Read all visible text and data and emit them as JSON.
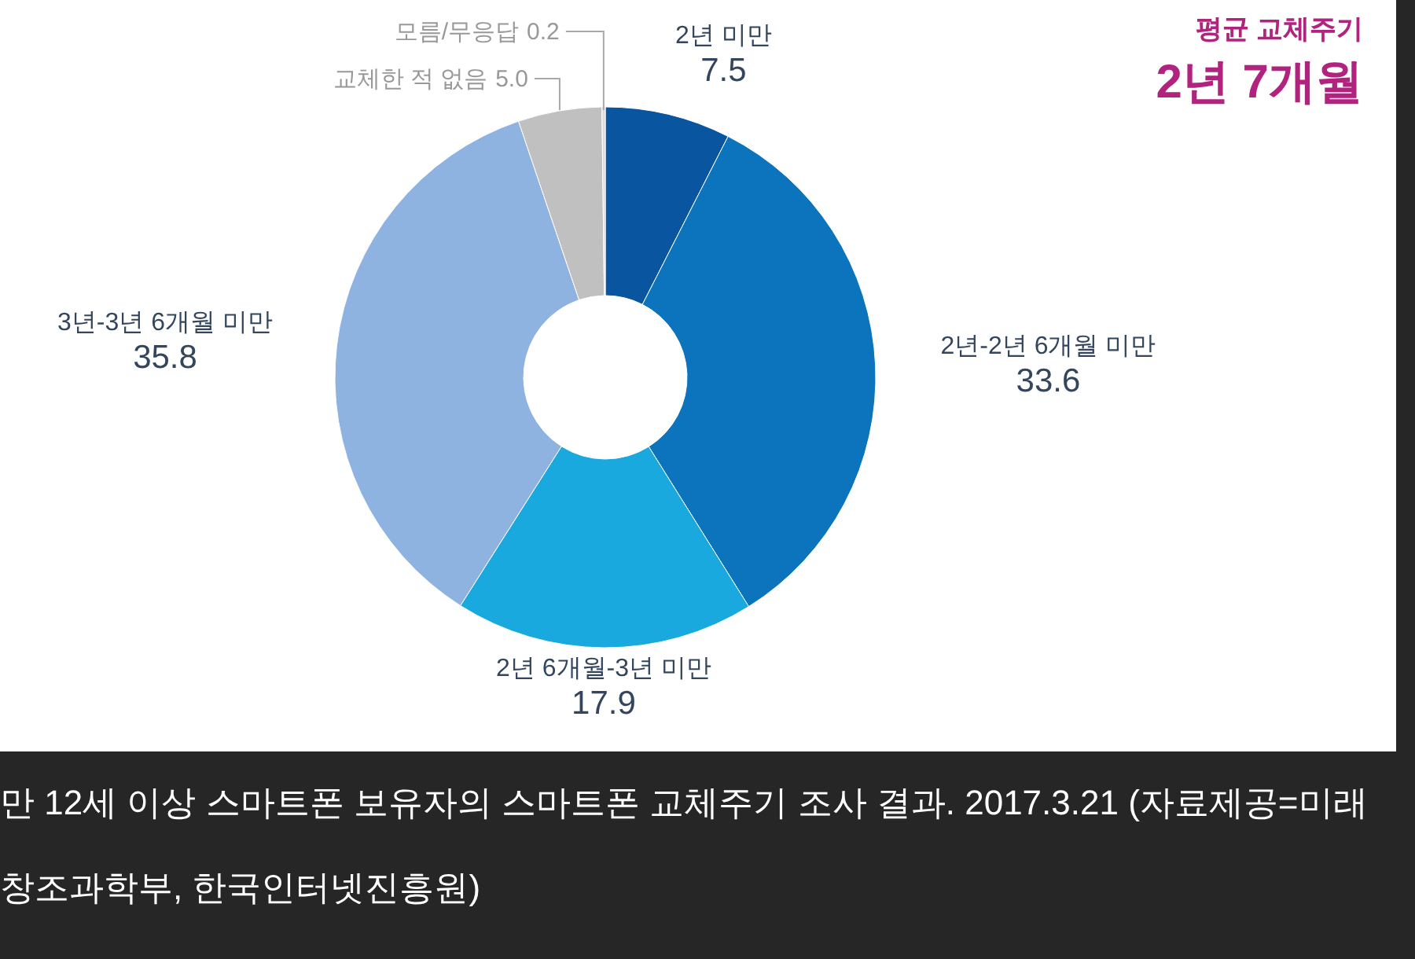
{
  "chart_data": {
    "type": "donut",
    "title": "평균 교체주기",
    "subtitle": "2년 7개월",
    "categories": [
      "2년 미만",
      "2년-2년 6개월 미만",
      "2년 6개월-3년 미만",
      "3년-3년 6개월 미만",
      "교체한 적 없음",
      "모름/무응답"
    ],
    "values": [
      7.5,
      33.6,
      17.9,
      35.8,
      5.0,
      0.2
    ],
    "colors": [
      "#0a55a0",
      "#0b74bd",
      "#19a9de",
      "#8fb3e0",
      "#c0c0c0",
      "#dcdcdc"
    ],
    "value_labels": [
      "7.5",
      "33.6",
      "17.9",
      "35.8",
      "5.0",
      "0.2"
    ],
    "annotations": [
      "만 12세 이상 스마트폰 보유자의 스마트폰 교체주기 조사 결과. 2017.3.21 (자료제공=미래창조과학부, 한국인터넷진흥원)"
    ]
  }
}
